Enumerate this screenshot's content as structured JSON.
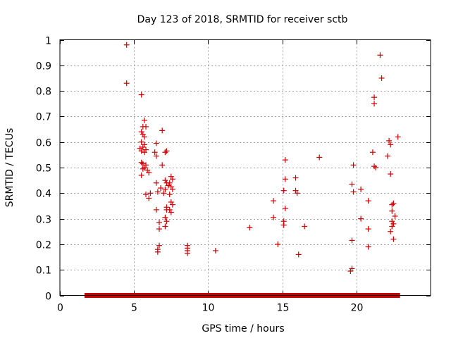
{
  "chart_data": {
    "type": "scatter",
    "title": "Day 123 of 2018, SRMTID for receiver sctb",
    "xlabel": "GPS time / hours",
    "ylabel": "SRMTID / TECUs",
    "xlim": [
      0,
      25
    ],
    "ylim": [
      0,
      1
    ],
    "xticks": [
      0,
      5,
      10,
      15,
      20
    ],
    "yticks": [
      0,
      0.1,
      0.2,
      0.3,
      0.4,
      0.5,
      0.6,
      0.7,
      0.8,
      0.9,
      1
    ],
    "ytick_labels": [
      "0",
      "0.1",
      "0.2",
      "0.3",
      "0.4",
      "0.5",
      "0.6",
      "0.7",
      "0.8",
      "0.9",
      "1"
    ],
    "grid": true,
    "marker": "+",
    "series": [
      {
        "name": "SRMTID",
        "color": "#cc0000",
        "points": [
          [
            4.5,
            0.98
          ],
          [
            4.5,
            0.83
          ],
          [
            5.5,
            0.785
          ],
          [
            5.7,
            0.685
          ],
          [
            5.6,
            0.66
          ],
          [
            5.8,
            0.66
          ],
          [
            5.5,
            0.64
          ],
          [
            5.6,
            0.63
          ],
          [
            5.7,
            0.62
          ],
          [
            5.5,
            0.6
          ],
          [
            5.7,
            0.59
          ],
          [
            5.6,
            0.58
          ],
          [
            5.4,
            0.575
          ],
          [
            5.8,
            0.57
          ],
          [
            5.5,
            0.565
          ],
          [
            5.7,
            0.56
          ],
          [
            5.5,
            0.52
          ],
          [
            5.6,
            0.515
          ],
          [
            5.8,
            0.51
          ],
          [
            5.7,
            0.5
          ],
          [
            5.6,
            0.495
          ],
          [
            5.9,
            0.49
          ],
          [
            5.5,
            0.47
          ],
          [
            6.0,
            0.48
          ],
          [
            5.8,
            0.395
          ],
          [
            6.1,
            0.4
          ],
          [
            6.0,
            0.38
          ],
          [
            6.5,
            0.595
          ],
          [
            6.4,
            0.56
          ],
          [
            6.5,
            0.545
          ],
          [
            6.9,
            0.645
          ],
          [
            6.9,
            0.51
          ],
          [
            6.5,
            0.44
          ],
          [
            6.8,
            0.42
          ],
          [
            6.6,
            0.405
          ],
          [
            6.5,
            0.335
          ],
          [
            6.7,
            0.285
          ],
          [
            6.7,
            0.26
          ],
          [
            6.7,
            0.195
          ],
          [
            6.6,
            0.18
          ],
          [
            6.6,
            0.17
          ],
          [
            7.2,
            0.565
          ],
          [
            7.1,
            0.56
          ],
          [
            7.1,
            0.45
          ],
          [
            7.2,
            0.44
          ],
          [
            7.3,
            0.43
          ],
          [
            7.1,
            0.415
          ],
          [
            7.0,
            0.4
          ],
          [
            7.2,
            0.345
          ],
          [
            7.2,
            0.335
          ],
          [
            7.1,
            0.305
          ],
          [
            7.2,
            0.29
          ],
          [
            7.1,
            0.27
          ],
          [
            7.5,
            0.465
          ],
          [
            7.6,
            0.455
          ],
          [
            7.4,
            0.44
          ],
          [
            7.5,
            0.425
          ],
          [
            7.6,
            0.415
          ],
          [
            7.4,
            0.395
          ],
          [
            7.5,
            0.365
          ],
          [
            7.6,
            0.355
          ],
          [
            7.4,
            0.335
          ],
          [
            7.5,
            0.325
          ],
          [
            8.6,
            0.195
          ],
          [
            8.6,
            0.185
          ],
          [
            8.6,
            0.175
          ],
          [
            8.6,
            0.165
          ],
          [
            10.5,
            0.175
          ],
          [
            12.8,
            0.265
          ],
          [
            14.4,
            0.305
          ],
          [
            14.4,
            0.37
          ],
          [
            14.7,
            0.2
          ],
          [
            15.2,
            0.53
          ],
          [
            15.2,
            0.455
          ],
          [
            15.1,
            0.41
          ],
          [
            15.2,
            0.34
          ],
          [
            15.1,
            0.29
          ],
          [
            15.1,
            0.275
          ],
          [
            15.9,
            0.46
          ],
          [
            15.9,
            0.41
          ],
          [
            16.0,
            0.4
          ],
          [
            16.1,
            0.16
          ],
          [
            16.5,
            0.27
          ],
          [
            17.5,
            0.54
          ],
          [
            19.8,
            0.51
          ],
          [
            19.7,
            0.435
          ],
          [
            19.8,
            0.405
          ],
          [
            19.7,
            0.215
          ],
          [
            19.7,
            0.105
          ],
          [
            19.6,
            0.095
          ],
          [
            20.3,
            0.415
          ],
          [
            20.3,
            0.3
          ],
          [
            20.8,
            0.37
          ],
          [
            20.8,
            0.26
          ],
          [
            20.8,
            0.19
          ],
          [
            21.2,
            0.775
          ],
          [
            21.2,
            0.75
          ],
          [
            21.1,
            0.56
          ],
          [
            21.2,
            0.505
          ],
          [
            21.3,
            0.5
          ],
          [
            21.6,
            0.94
          ],
          [
            21.7,
            0.85
          ],
          [
            22.2,
            0.605
          ],
          [
            22.3,
            0.59
          ],
          [
            22.1,
            0.545
          ],
          [
            22.3,
            0.475
          ],
          [
            22.5,
            0.36
          ],
          [
            22.4,
            0.355
          ],
          [
            22.4,
            0.33
          ],
          [
            22.6,
            0.31
          ],
          [
            22.4,
            0.29
          ],
          [
            22.5,
            0.28
          ],
          [
            22.4,
            0.27
          ],
          [
            22.3,
            0.25
          ],
          [
            22.5,
            0.22
          ],
          [
            22.8,
            0.62
          ]
        ],
        "baseline_band": {
          "from": 1.8,
          "to": 22.8,
          "value": 0
        }
      }
    ]
  }
}
